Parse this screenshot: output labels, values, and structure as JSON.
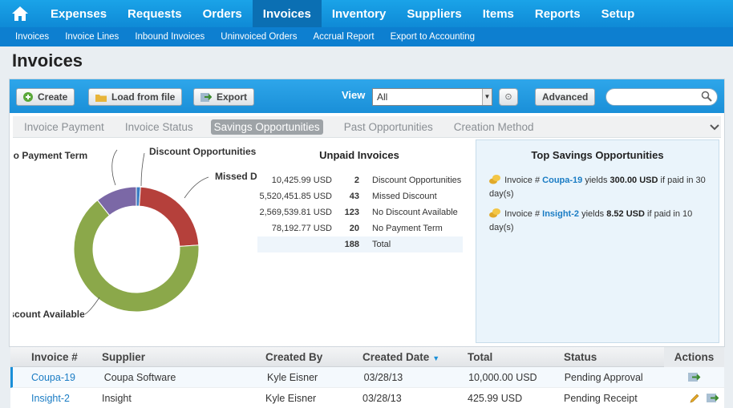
{
  "nav": {
    "home_icon": "home-icon",
    "tabs": [
      "Expenses",
      "Requests",
      "Orders",
      "Invoices",
      "Inventory",
      "Suppliers",
      "Items",
      "Reports",
      "Setup"
    ],
    "active": "Invoices"
  },
  "subnav": [
    "Invoices",
    "Invoice Lines",
    "Inbound Invoices",
    "Uninvoiced Orders",
    "Accrual Report",
    "Export to Accounting"
  ],
  "page_title": "Invoices",
  "toolbar": {
    "create": "Create",
    "load": "Load from file",
    "export": "Export",
    "view_label": "View",
    "view_value": "All",
    "advanced": "Advanced",
    "search_placeholder": ""
  },
  "tabs": [
    "Invoice Payment",
    "Invoice Status",
    "Savings Opportunities",
    "Past Opportunities",
    "Creation Method"
  ],
  "active_tab": "Savings Opportunities",
  "chart_labels": {
    "no_payment": "No Payment Term",
    "discount_opp": "Discount Opportunities",
    "missed": "Missed Discount",
    "no_discount": "No Discount Available"
  },
  "chart_data": {
    "type": "pie",
    "donut": true,
    "categories": [
      "Discount Opportunities",
      "Missed Discount",
      "No Discount Available",
      "No Payment Term"
    ],
    "values": [
      2,
      43,
      123,
      20
    ],
    "colors": [
      "#3b7dc4",
      "#b5403b",
      "#8ba84a",
      "#7b68a6"
    ]
  },
  "unpaid": {
    "title": "Unpaid Invoices",
    "rows": [
      {
        "amount": "10,425.99 USD",
        "count": "2",
        "label": "Discount Opportunities"
      },
      {
        "amount": "5,520,451.85 USD",
        "count": "43",
        "label": "Missed Discount"
      },
      {
        "amount": "2,569,539.81 USD",
        "count": "123",
        "label": "No Discount Available"
      },
      {
        "amount": "78,192.77 USD",
        "count": "20",
        "label": "No Payment Term"
      }
    ],
    "total": {
      "count": "188",
      "label": "Total"
    }
  },
  "savings": {
    "title": "Top Savings Opportunities",
    "items": [
      {
        "prefix": "Invoice #",
        "invoice": "Coupa-19",
        "mid": "yields",
        "amount": "300.00 USD",
        "suffix": "if paid in 30 day(s)"
      },
      {
        "prefix": "Invoice #",
        "invoice": "Insight-2",
        "mid": "yields",
        "amount": "8.52 USD",
        "suffix": "if paid in 10 day(s)"
      }
    ]
  },
  "table": {
    "headers": [
      "Invoice #",
      "Supplier",
      "Created By",
      "Created Date",
      "Total",
      "Status",
      "Actions"
    ],
    "rows": [
      [
        "Coupa-19",
        "Coupa Software",
        "Kyle Eisner",
        "03/28/13",
        "10,000.00 USD",
        "Pending Approval"
      ],
      [
        "Insight-2",
        "Insight",
        "Kyle Eisner",
        "03/28/13",
        "425.99 USD",
        "Pending Receipt"
      ]
    ]
  }
}
